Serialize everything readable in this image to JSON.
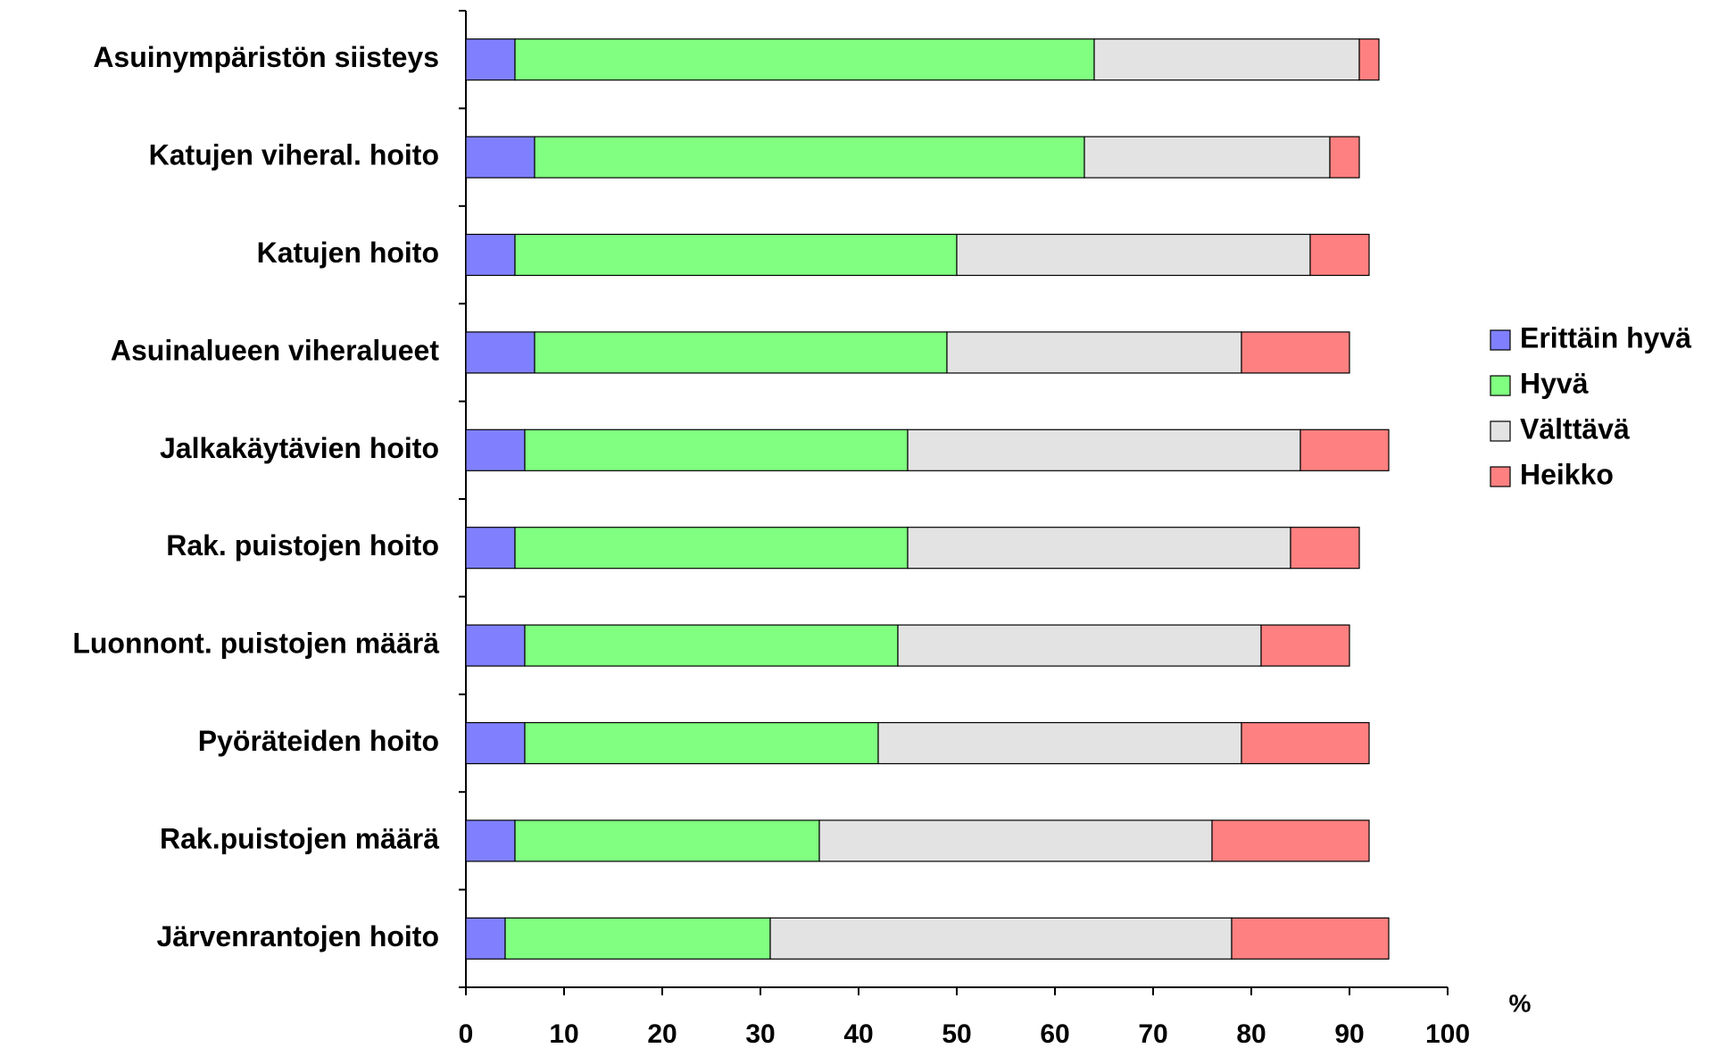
{
  "chart_data": {
    "type": "stacked_barh",
    "categories": [
      "Asuinympäristön siisteys",
      "Katujen viheral. hoito",
      "Katujen hoito",
      "Asuinalueen viheralueet",
      "Jalkakäytävien hoito",
      "Rak. puistojen hoito",
      "Luonnont. puistojen määrä",
      "Pyöräteiden hoito",
      "Rak.puistojen määrä",
      "Järvenrantojen hoito"
    ],
    "series": [
      {
        "name": "Erittäin hyvä",
        "color": "#8080ff",
        "values": [
          5,
          7,
          5,
          7,
          6,
          5,
          6,
          6,
          5,
          4
        ]
      },
      {
        "name": "Hyvä",
        "color": "#80ff80",
        "values": [
          59,
          56,
          45,
          42,
          39,
          40,
          38,
          36,
          31,
          27
        ]
      },
      {
        "name": "Välttävä",
        "color": "#e3e3e3",
        "values": [
          27,
          25,
          36,
          30,
          40,
          39,
          37,
          37,
          40,
          47
        ]
      },
      {
        "name": "Heikko",
        "color": "#ff8080",
        "values": [
          2,
          3,
          6,
          11,
          9,
          7,
          9,
          13,
          16,
          16
        ]
      }
    ],
    "xlabel": "%",
    "xlim": [
      0,
      100
    ],
    "xticks": [
      0,
      10,
      20,
      30,
      40,
      50,
      60,
      70,
      80,
      90,
      100
    ],
    "legend": "right"
  }
}
